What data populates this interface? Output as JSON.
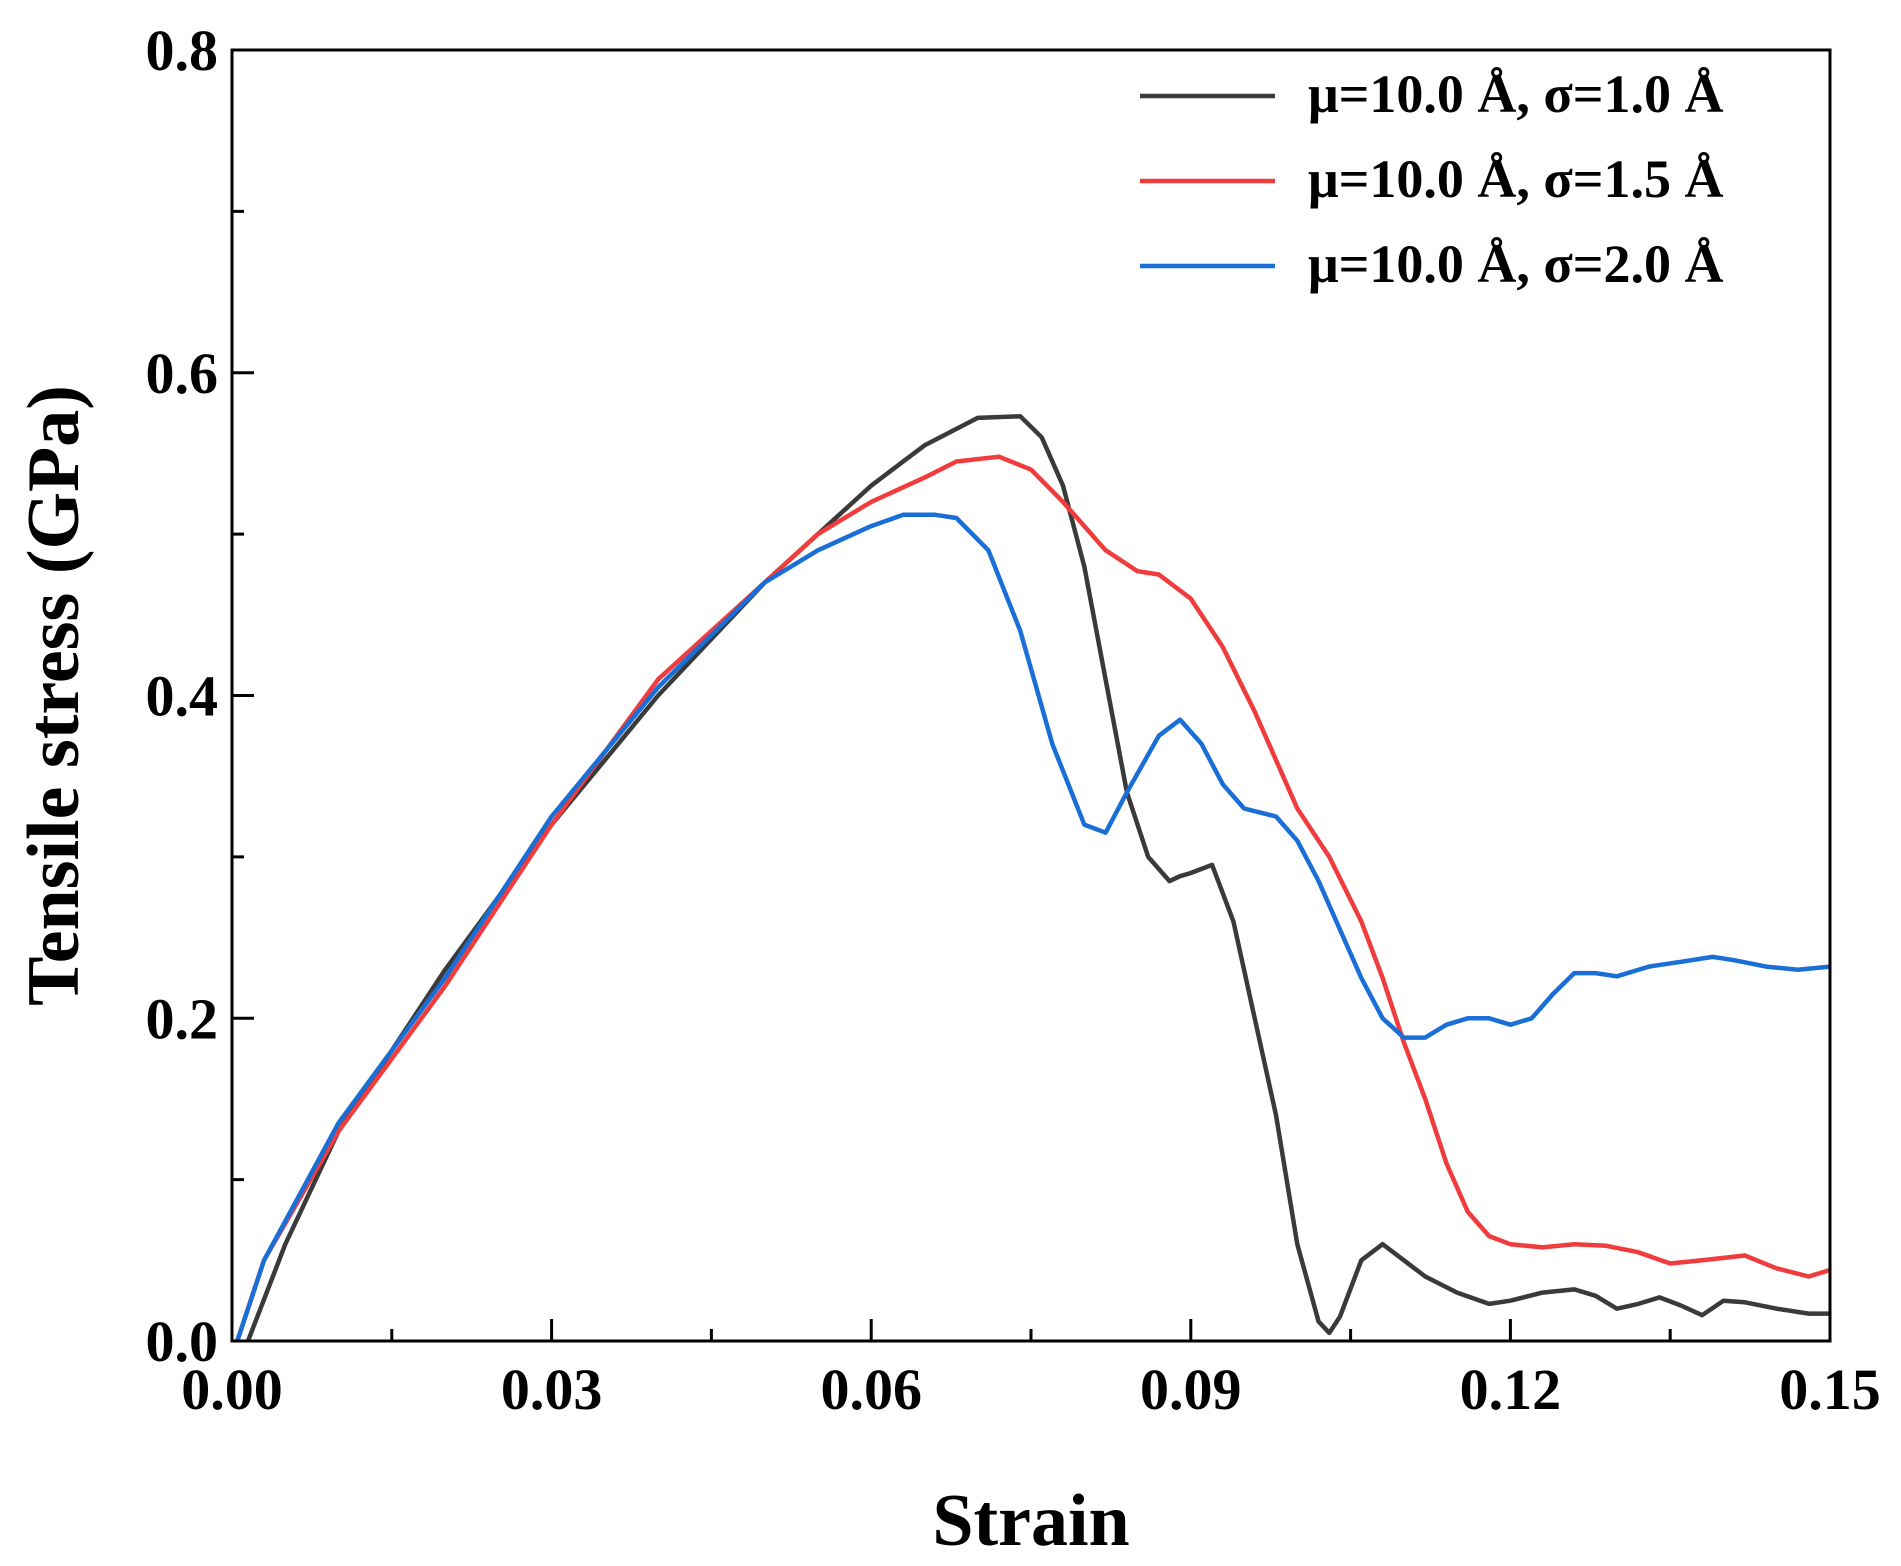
{
  "chart_data": {
    "type": "line",
    "title": "",
    "xlabel": "Strain",
    "ylabel": "Tensile stress (GPa)",
    "xlim": [
      0.0,
      0.15
    ],
    "ylim": [
      0.0,
      0.8
    ],
    "xticks": [
      "0.00",
      "0.03",
      "0.06",
      "0.09",
      "0.12",
      "0.15"
    ],
    "xtick_values": [
      0.0,
      0.03,
      0.06,
      0.09,
      0.12,
      0.15
    ],
    "yticks": [
      "0.0",
      "0.2",
      "0.4",
      "0.6",
      "0.8"
    ],
    "ytick_values": [
      0.0,
      0.2,
      0.4,
      0.6,
      0.8
    ],
    "grid": false,
    "legend_position": "top-right",
    "series": [
      {
        "name": "μ=10.0 Å, σ=1.0 Å",
        "color": "#3a3a3a",
        "x": [
          0.0015,
          0.005,
          0.01,
          0.02,
          0.03,
          0.04,
          0.05,
          0.06,
          0.065,
          0.07,
          0.074,
          0.076,
          0.078,
          0.08,
          0.082,
          0.084,
          0.086,
          0.088,
          0.089,
          0.09,
          0.092,
          0.094,
          0.096,
          0.098,
          0.1,
          0.102,
          0.103,
          0.104,
          0.106,
          0.108,
          0.11,
          0.112,
          0.115,
          0.118,
          0.12,
          0.123,
          0.126,
          0.128,
          0.13,
          0.132,
          0.134,
          0.136,
          0.138,
          0.14,
          0.142,
          0.145,
          0.148,
          0.15
        ],
        "y": [
          0.0,
          0.06,
          0.13,
          0.23,
          0.32,
          0.4,
          0.47,
          0.53,
          0.555,
          0.572,
          0.573,
          0.56,
          0.53,
          0.48,
          0.41,
          0.34,
          0.3,
          0.285,
          0.288,
          0.29,
          0.295,
          0.26,
          0.2,
          0.14,
          0.06,
          0.012,
          0.005,
          0.015,
          0.05,
          0.06,
          0.05,
          0.04,
          0.03,
          0.023,
          0.025,
          0.03,
          0.032,
          0.028,
          0.02,
          0.023,
          0.027,
          0.022,
          0.016,
          0.025,
          0.024,
          0.02,
          0.017,
          0.017
        ]
      },
      {
        "name": "μ=10.0 Å, σ=1.5 Å",
        "color": "#f03c3c",
        "x": [
          0.0005,
          0.003,
          0.01,
          0.02,
          0.03,
          0.04,
          0.05,
          0.055,
          0.06,
          0.065,
          0.068,
          0.072,
          0.075,
          0.078,
          0.08,
          0.082,
          0.085,
          0.087,
          0.09,
          0.093,
          0.096,
          0.1,
          0.103,
          0.106,
          0.108,
          0.11,
          0.112,
          0.114,
          0.116,
          0.118,
          0.12,
          0.123,
          0.126,
          0.129,
          0.132,
          0.135,
          0.138,
          0.142,
          0.145,
          0.148,
          0.15
        ],
        "y": [
          0.0,
          0.05,
          0.13,
          0.22,
          0.32,
          0.41,
          0.47,
          0.5,
          0.52,
          0.535,
          0.545,
          0.548,
          0.54,
          0.52,
          0.505,
          0.49,
          0.477,
          0.475,
          0.46,
          0.43,
          0.39,
          0.33,
          0.3,
          0.26,
          0.225,
          0.185,
          0.15,
          0.11,
          0.08,
          0.065,
          0.06,
          0.058,
          0.06,
          0.059,
          0.055,
          0.048,
          0.05,
          0.053,
          0.045,
          0.04,
          0.044
        ]
      },
      {
        "name": "μ=10.0 Å, σ=2.0 Å",
        "color": "#1a6fd6",
        "x": [
          0.0005,
          0.003,
          0.01,
          0.02,
          0.03,
          0.04,
          0.05,
          0.055,
          0.06,
          0.063,
          0.066,
          0.068,
          0.071,
          0.074,
          0.077,
          0.08,
          0.082,
          0.084,
          0.087,
          0.089,
          0.091,
          0.093,
          0.095,
          0.098,
          0.1,
          0.102,
          0.104,
          0.106,
          0.108,
          0.11,
          0.112,
          0.114,
          0.116,
          0.118,
          0.12,
          0.122,
          0.124,
          0.126,
          0.128,
          0.13,
          0.133,
          0.136,
          0.139,
          0.141,
          0.144,
          0.147,
          0.15
        ],
        "y": [
          0.0,
          0.05,
          0.135,
          0.225,
          0.325,
          0.405,
          0.47,
          0.49,
          0.505,
          0.512,
          0.512,
          0.51,
          0.49,
          0.44,
          0.37,
          0.32,
          0.315,
          0.34,
          0.375,
          0.385,
          0.37,
          0.345,
          0.33,
          0.325,
          0.31,
          0.285,
          0.255,
          0.225,
          0.2,
          0.188,
          0.188,
          0.196,
          0.2,
          0.2,
          0.196,
          0.2,
          0.215,
          0.228,
          0.228,
          0.226,
          0.232,
          0.235,
          0.238,
          0.236,
          0.232,
          0.23,
          0.232
        ]
      }
    ]
  }
}
